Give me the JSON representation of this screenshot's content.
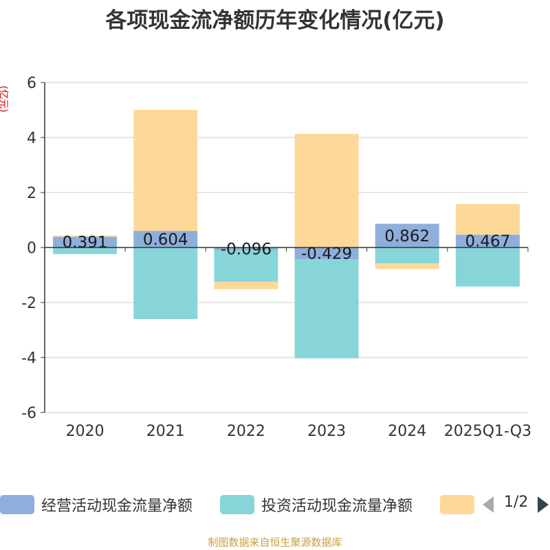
{
  "chart_data": {
    "type": "bar",
    "stacked": true,
    "title": "各项现金流净额历年变化情况(亿元)",
    "ylabel": "(亿元)",
    "xlabel": "",
    "ylim": [
      -6,
      6
    ],
    "yticks": [
      6,
      4,
      2,
      0,
      -2,
      -4,
      -6
    ],
    "grid": true,
    "categories": [
      "2020",
      "2021",
      "2022",
      "2023",
      "2024",
      "2025Q1-Q3"
    ],
    "series": [
      {
        "name": "经营活动现金流量净额",
        "color": "#8eaedc",
        "values": [
          0.391,
          0.604,
          -0.096,
          -0.429,
          0.862,
          0.467
        ],
        "show_labels": true
      },
      {
        "name": "投资活动现金流量净额",
        "color": "#87d5d8",
        "values": [
          -0.24,
          -2.6,
          -1.15,
          -3.6,
          -0.58,
          -1.42
        ],
        "show_labels": false
      },
      {
        "name": "",
        "color": "#fdd898",
        "values": [
          0.04,
          4.4,
          -0.27,
          4.13,
          -0.2,
          1.11
        ],
        "show_labels": false
      }
    ],
    "data_labels": [
      "0.391",
      "0.604",
      "-0.096",
      "-0.429",
      "0.862",
      "0.467"
    ]
  },
  "legend": {
    "items": [
      {
        "label": "经营活动现金流量净额",
        "color": "#8eaedc"
      },
      {
        "label": "投资活动现金流量净额",
        "color": "#87d5d8"
      },
      {
        "label": "",
        "color": "#fdd898"
      }
    ],
    "pager": "1/2"
  },
  "source_note": "制图数据来自恒生聚源数据库"
}
